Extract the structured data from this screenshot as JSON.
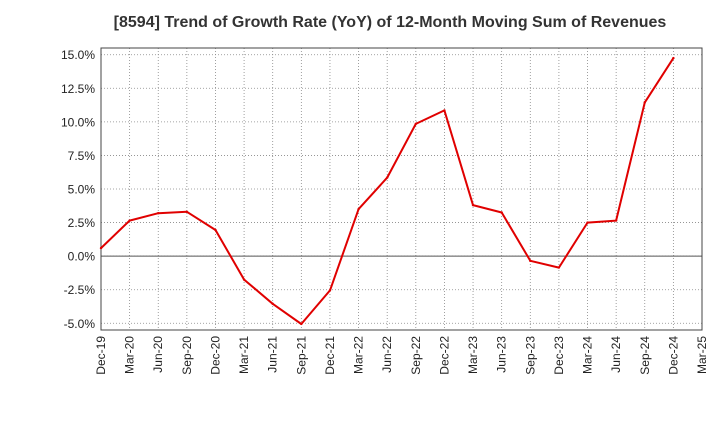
{
  "chart_data": {
    "type": "line",
    "title": "[8594]  Trend of Growth Rate (YoY) of 12-Month Moving Sum of Revenues",
    "xlabel": "",
    "ylabel": "",
    "x_tick_labels": [
      "Dec-19",
      "Mar-20",
      "Jun-20",
      "Sep-20",
      "Dec-20",
      "Mar-21",
      "Jun-21",
      "Sep-21",
      "Dec-21",
      "Mar-22",
      "Jun-22",
      "Sep-22",
      "Dec-22",
      "Mar-23",
      "Jun-23",
      "Sep-23",
      "Dec-23",
      "Mar-24",
      "Jun-24",
      "Sep-24",
      "Dec-24",
      "Mar-25"
    ],
    "y_ticks": [
      15.0,
      12.5,
      10.0,
      7.5,
      5.0,
      2.5,
      0.0,
      -2.5,
      -5.0
    ],
    "y_tick_labels": [
      "15.0%",
      "12.5%",
      "10.0%",
      "7.5%",
      "5.0%",
      "2.5%",
      "0.0%",
      "-2.5%",
      "-5.0%"
    ],
    "ylim": [
      -5.5,
      15.5
    ],
    "grid": true,
    "series": [
      {
        "color": "#e00000",
        "x": [
          "Dec-19",
          "Mar-20",
          "Jun-20",
          "Sep-20",
          "Dec-20",
          "Mar-21",
          "Jun-21",
          "Sep-21",
          "Dec-21",
          "Mar-22",
          "Jun-22",
          "Sep-22",
          "Dec-22",
          "Mar-23",
          "Jun-23",
          "Sep-23",
          "Dec-23",
          "Mar-24",
          "Jun-24",
          "Sep-24",
          "Dec-24"
        ],
        "values": [
          0.6,
          2.65,
          3.2,
          3.3,
          1.95,
          -1.75,
          -3.55,
          -5.05,
          -2.55,
          3.5,
          5.85,
          9.85,
          10.85,
          3.8,
          3.25,
          -0.35,
          -0.85,
          2.5,
          2.65,
          11.45,
          14.75
        ]
      }
    ]
  }
}
